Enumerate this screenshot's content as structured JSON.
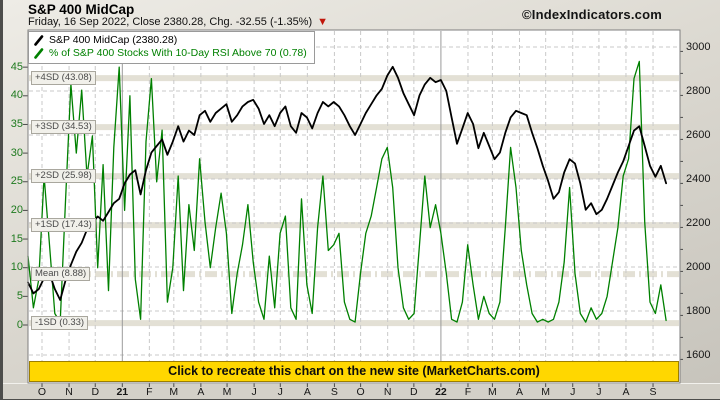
{
  "header": {
    "title": "S&P 400 MidCap",
    "subtitle": "Friday, 16 Sep 2022, Close 2380.28, Chg. -32.55 (-1.35%)",
    "change_direction": "down",
    "down_triangle": "▼",
    "watermark": "©IndexIndicators.com"
  },
  "legend": {
    "items": [
      {
        "label": "S&P 400 MidCap (2380.28)",
        "color": "#000000"
      },
      {
        "label": "% of S&P 400 Stocks With 10-Day RSI Above 70 (0.78)",
        "color": "#008000"
      }
    ]
  },
  "banner": {
    "label": "Click to recreate this chart on the new site (MarketCharts.com)",
    "bg": "#ffd700"
  },
  "colors": {
    "price_line": "#000000",
    "rsi_line": "#008000",
    "left_axis_text": "#1e7a1e",
    "right_axis_text": "#161616",
    "sd_band": "#e3e0d5",
    "gridline": "#c9c9c9",
    "year_gridline": "#9a9a9a",
    "banner_bg": "#ffd700",
    "triangle_red": "#c1170b"
  },
  "chart_data": {
    "type": "line",
    "title": "S&P 400 MidCap vs % of S&P 400 Stocks With 10-Day RSI Above 70",
    "start_day": -16,
    "end_day": 715,
    "x_axis": {
      "ticks": [
        {
          "label": "O",
          "day": 0
        },
        {
          "label": "N",
          "day": 31
        },
        {
          "label": "D",
          "day": 61
        },
        {
          "label": "21",
          "day": 92,
          "bold": true
        },
        {
          "label": "F",
          "day": 123
        },
        {
          "label": "M",
          "day": 151
        },
        {
          "label": "A",
          "day": 182
        },
        {
          "label": "M",
          "day": 212
        },
        {
          "label": "J",
          "day": 243
        },
        {
          "label": "J",
          "day": 273
        },
        {
          "label": "A",
          "day": 304
        },
        {
          "label": "S",
          "day": 335
        },
        {
          "label": "O",
          "day": 365
        },
        {
          "label": "N",
          "day": 396
        },
        {
          "label": "D",
          "day": 426
        },
        {
          "label": "22",
          "day": 457,
          "bold": true
        },
        {
          "label": "F",
          "day": 488
        },
        {
          "label": "M",
          "day": 516
        },
        {
          "label": "A",
          "day": 547
        },
        {
          "label": "M",
          "day": 577
        },
        {
          "label": "J",
          "day": 608
        },
        {
          "label": "J",
          "day": 638
        },
        {
          "label": "A",
          "day": 669
        },
        {
          "label": "S",
          "day": 700
        }
      ]
    },
    "y_left": {
      "ticks": [
        45,
        40,
        35,
        30,
        25,
        20,
        15,
        10,
        5,
        0
      ],
      "lim": [
        -10,
        52
      ]
    },
    "y_right": {
      "ticks": [
        3000,
        2800,
        2600,
        2400,
        2200,
        2000,
        1800,
        1600
      ],
      "minor_step": 100,
      "lim": [
        1500,
        3080
      ]
    },
    "sd_lines": [
      {
        "label": "+4SD (43.08)",
        "value": 43.08
      },
      {
        "label": "+3SD (34.53)",
        "value": 34.53
      },
      {
        "label": "+2SD (25.98)",
        "value": 25.98
      },
      {
        "label": "+1SD (17.43)",
        "value": 17.43
      },
      {
        "label": "Mean (8.88)",
        "value": 8.88,
        "style": "dashdot"
      },
      {
        "label": "-1SD (0.33)",
        "value": 0.33
      }
    ],
    "series": [
      {
        "name": "% of S&P 400 Stocks With 10-Day RSI Above 70",
        "slug": "rsi-breadth-line",
        "axis": "left",
        "color": "#008000",
        "width": 1.3,
        "values": [
          12,
          3,
          8,
          26,
          14,
          2,
          0.5,
          22,
          42,
          30,
          41,
          26,
          33,
          10,
          28,
          6,
          31,
          45,
          20,
          40,
          8,
          1,
          32,
          43,
          25,
          34,
          4,
          10,
          26,
          6,
          21,
          13,
          29,
          18,
          10,
          17,
          23,
          16,
          2,
          9,
          14,
          21,
          11,
          4,
          1,
          12,
          3,
          16,
          19,
          3,
          1,
          22,
          7,
          2,
          17,
          26,
          13,
          14,
          16,
          4,
          1,
          0.5,
          9,
          16,
          19,
          24,
          29,
          31,
          24,
          10,
          3,
          1,
          2,
          14,
          26,
          17,
          21,
          16,
          9,
          1,
          0.5,
          4,
          14,
          7,
          1,
          5,
          2,
          1,
          4,
          17,
          31,
          24,
          13,
          7,
          2,
          0.5,
          1,
          0.5,
          1,
          4,
          11,
          24,
          9,
          2,
          0.5,
          3,
          1,
          2,
          5,
          11,
          17,
          26,
          29,
          43,
          46,
          18,
          4,
          2,
          7,
          0.78
        ]
      },
      {
        "name": "S&P 400 MidCap",
        "slug": "price-line",
        "axis": "right",
        "color": "#000000",
        "width": 1.8,
        "values": [
          1930,
          1880,
          1900,
          1950,
          1970,
          1900,
          1850,
          1940,
          2010,
          2070,
          2110,
          2170,
          2200,
          2230,
          2210,
          2250,
          2290,
          2310,
          2380,
          2420,
          2440,
          2330,
          2440,
          2520,
          2550,
          2580,
          2510,
          2570,
          2640,
          2570,
          2620,
          2600,
          2690,
          2710,
          2660,
          2700,
          2720,
          2740,
          2660,
          2690,
          2730,
          2750,
          2760,
          2720,
          2650,
          2690,
          2640,
          2700,
          2730,
          2640,
          2610,
          2700,
          2680,
          2630,
          2700,
          2750,
          2730,
          2750,
          2730,
          2690,
          2640,
          2600,
          2650,
          2700,
          2740,
          2780,
          2810,
          2870,
          2910,
          2860,
          2790,
          2740,
          2690,
          2780,
          2830,
          2860,
          2840,
          2850,
          2800,
          2680,
          2560,
          2630,
          2700,
          2650,
          2540,
          2610,
          2550,
          2490,
          2520,
          2610,
          2680,
          2710,
          2700,
          2690,
          2610,
          2540,
          2460,
          2390,
          2310,
          2340,
          2430,
          2490,
          2470,
          2380,
          2260,
          2290,
          2240,
          2260,
          2310,
          2370,
          2430,
          2480,
          2550,
          2620,
          2640,
          2550,
          2460,
          2410,
          2460,
          2380.28
        ]
      }
    ]
  }
}
